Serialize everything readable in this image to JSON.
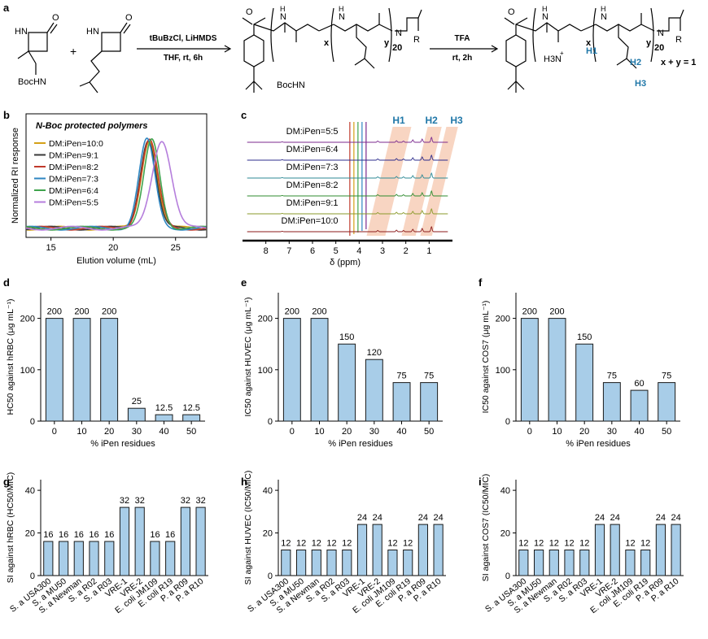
{
  "panel_labels": {
    "a": "a",
    "b": "b",
    "c": "c",
    "d": "d",
    "e": "e",
    "f": "f",
    "g": "g",
    "h": "h",
    "i": "i"
  },
  "scheme": {
    "plus": "+",
    "reagents_step1_top": "tBuBzCl, LiHMDS",
    "reagents_step1_bottom": "THF, rt, 6h",
    "reagents_step2_top": "TFA",
    "reagents_step2_bottom": "rt, 2h",
    "monomer1_hn": "HN",
    "monomer1_boc": "BocHN",
    "monomer2_hn": "HN",
    "o_label": "O",
    "polymer_x": "x",
    "polymer_y": "y",
    "polymer_20": "20",
    "polymer_n": "N",
    "polymer_r": "R",
    "polymer_nh": "N",
    "polymer_h": "H",
    "boc_polymer": "BocHN",
    "amine": "H3N",
    "amine_plus": "+",
    "h1": "H1",
    "h2": "H2",
    "h3": "H3",
    "ratio_eq": "x + y = 1"
  },
  "chart_data": [
    {
      "id": "b",
      "type": "line",
      "title": "N-Boc protected polymers",
      "xlabel": "Elution volume (mL)",
      "ylabel": "Normalized RI response",
      "xlim": [
        13,
        27.5
      ],
      "xticks": [
        "15",
        "20",
        "25"
      ],
      "xtick_values": [
        15,
        20,
        25
      ],
      "legend_position": "top-left",
      "series": [
        {
          "name": "DM:iPen=10:0",
          "color": "#d4a017",
          "peak": 22.9,
          "width": 0.9
        },
        {
          "name": "DM:iPen=9:1",
          "color": "#3a3a3a",
          "peak": 22.8,
          "width": 0.9
        },
        {
          "name": "DM:iPen=8:2",
          "color": "#c0392b",
          "peak": 22.9,
          "width": 0.95
        },
        {
          "name": "DM:iPen=7:3",
          "color": "#2e86c1",
          "peak": 22.7,
          "width": 0.9
        },
        {
          "name": "DM:iPen=6:4",
          "color": "#3fa34d",
          "peak": 23.1,
          "width": 0.9
        },
        {
          "name": "DM:iPen=5:5",
          "color": "#b57edc",
          "peak": 23.9,
          "width": 1.1
        }
      ]
    },
    {
      "id": "c",
      "type": "line",
      "xlabel": "δ (ppm)",
      "xticks": [
        "8",
        "7",
        "6",
        "5",
        "4",
        "3",
        "2",
        "1"
      ],
      "tick_values": [
        8,
        7,
        6,
        5,
        4,
        3,
        2,
        1
      ],
      "xlim": [
        9,
        0
      ],
      "peak_labels": [
        "H1",
        "H2",
        "H3"
      ],
      "series": [
        {
          "name": "DM:iPen=5:5",
          "color": "#7b2a8f"
        },
        {
          "name": "DM:iPen=6:4",
          "color": "#2c2c8c"
        },
        {
          "name": "DM:iPen=7:3",
          "color": "#2e8a96"
        },
        {
          "name": "DM:iPen=8:2",
          "color": "#2e8b2e"
        },
        {
          "name": "DM:iPen=9:1",
          "color": "#8a9a2a"
        },
        {
          "name": "DM:iPen=10:0",
          "color": "#8b1a1a"
        }
      ]
    },
    {
      "id": "d",
      "type": "bar",
      "categories": [
        "0",
        "10",
        "20",
        "30",
        "40",
        "50"
      ],
      "values": [
        200,
        200,
        200,
        25,
        12.5,
        12.5
      ],
      "value_labels": [
        "200",
        "200",
        "200",
        "25",
        "12.5",
        "12.5"
      ],
      "xlabel": "% iPen residues",
      "ylabel": "HC50 against hRBC (μg mL⁻¹)",
      "ylim": [
        0,
        250
      ],
      "yticks": [
        "0",
        "100",
        "200"
      ]
    },
    {
      "id": "e",
      "type": "bar",
      "categories": [
        "0",
        "10",
        "20",
        "30",
        "40",
        "50"
      ],
      "values": [
        200,
        200,
        150,
        120,
        75,
        75
      ],
      "value_labels": [
        "200",
        "200",
        "150",
        "120",
        "75",
        "75"
      ],
      "xlabel": "% iPen residues",
      "ylabel": "IC50 against HUVEC (μg mL⁻¹)",
      "ylim": [
        0,
        250
      ],
      "yticks": [
        "0",
        "100",
        "200"
      ]
    },
    {
      "id": "f",
      "type": "bar",
      "categories": [
        "0",
        "10",
        "20",
        "30",
        "40",
        "50"
      ],
      "values": [
        200,
        200,
        150,
        75,
        60,
        75
      ],
      "value_labels": [
        "200",
        "200",
        "150",
        "75",
        "60",
        "75"
      ],
      "xlabel": "% iPen residues",
      "ylabel": "IC50 against COS7 (μg mL⁻¹)",
      "ylim": [
        0,
        250
      ],
      "yticks": [
        "0",
        "100",
        "200"
      ]
    },
    {
      "id": "g",
      "type": "bar",
      "categories": [
        "S. a USA300",
        "S. a MU50",
        "S. a Newman",
        "S. a R02",
        "S. a R03",
        "VRE-1",
        "VRE-2",
        "E. coli JM109",
        "E. coli R19",
        "P. a R09",
        "P. a R10"
      ],
      "values": [
        16,
        16,
        16,
        16,
        16,
        32,
        32,
        16,
        16,
        32,
        32
      ],
      "value_labels": [
        "16",
        "16",
        "16",
        "16",
        "16",
        "32",
        "32",
        "16",
        "16",
        "32",
        "32"
      ],
      "ylabel": "SI against hRBC (HC50/MIC)",
      "ylim": [
        0,
        45
      ],
      "yticks": [
        "0",
        "20",
        "40"
      ]
    },
    {
      "id": "h",
      "type": "bar",
      "categories": [
        "S. a USA300",
        "S. a MU50",
        "S. a Newman",
        "S. a R02",
        "S. a R03",
        "VRE-1",
        "VRE-2",
        "E. coli JM109",
        "E. coli R19",
        "P. a R09",
        "P. a R10"
      ],
      "values": [
        12,
        12,
        12,
        12,
        12,
        24,
        24,
        12,
        12,
        24,
        24
      ],
      "value_labels": [
        "12",
        "12",
        "12",
        "12",
        "12",
        "24",
        "24",
        "12",
        "12",
        "24",
        "24"
      ],
      "ylabel": "SI against HUVEC (IC50/MIC)",
      "ylim": [
        0,
        45
      ],
      "yticks": [
        "0",
        "20",
        "40"
      ]
    },
    {
      "id": "i",
      "type": "bar",
      "categories": [
        "S. a USA300",
        "S. a MU50",
        "S. a Newman",
        "S. a R02",
        "S. a R03",
        "VRE-1",
        "VRE-2",
        "E. coli JM109",
        "E. coli R19",
        "P. a R09",
        "P. a R10"
      ],
      "values": [
        12,
        12,
        12,
        12,
        12,
        24,
        24,
        12,
        12,
        24,
        24
      ],
      "value_labels": [
        "12",
        "12",
        "12",
        "12",
        "12",
        "24",
        "24",
        "12",
        "12",
        "24",
        "24"
      ],
      "ylabel": "SI against COS7 (IC50/MIC)",
      "ylim": [
        0,
        45
      ],
      "yticks": [
        "0",
        "20",
        "40"
      ]
    }
  ],
  "colors": {
    "bar_fill": "#a8cde8",
    "bar_stroke": "#1a1a1a",
    "h_label": "#1f77a8",
    "highlight": "#f6c7ad"
  }
}
